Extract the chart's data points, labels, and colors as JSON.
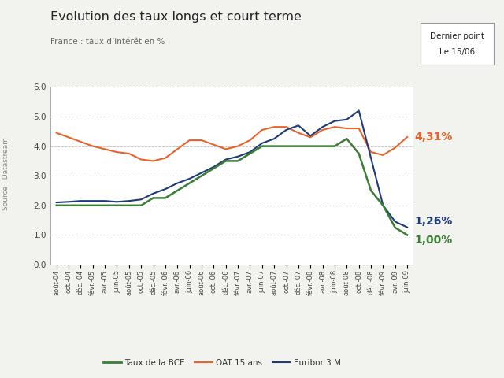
{
  "title": "Evolution des taux longs et court terme",
  "subtitle": "France : taux d’intérêt en %",
  "source": "Source : Datastream",
  "ylim": [
    0.0,
    6.0
  ],
  "yticks": [
    0.0,
    1.0,
    2.0,
    3.0,
    4.0,
    5.0,
    6.0
  ],
  "bg_color": "#f2f2ee",
  "plot_bg_color": "#ffffff",
  "x_labels": [
    "août-04",
    "oct.-04",
    "déc.-04",
    "févr.-05",
    "avr.-05",
    "juin-05",
    "août-05",
    "oct.-05",
    "déc.-05",
    "févr.-06",
    "avr.-06",
    "juin-06",
    "août-06",
    "oct.-06",
    "déc.-06",
    "févr.-07",
    "avr.-07",
    "juin-07",
    "août-07",
    "oct.-07",
    "déc.-07",
    "févr.-08",
    "avr.-08",
    "juin-08",
    "août-08",
    "oct.-08",
    "déc.-08",
    "févr.-09",
    "avr.-09",
    "juin-09"
  ],
  "bce": [
    2.0,
    2.0,
    2.0,
    2.0,
    2.0,
    2.0,
    2.0,
    2.0,
    2.25,
    2.25,
    2.5,
    2.75,
    3.0,
    3.25,
    3.5,
    3.5,
    3.75,
    4.0,
    4.0,
    4.0,
    4.0,
    4.0,
    4.0,
    4.0,
    4.25,
    3.75,
    2.5,
    2.0,
    1.25,
    1.0
  ],
  "oat": [
    4.45,
    4.3,
    4.15,
    4.0,
    3.9,
    3.8,
    3.75,
    3.55,
    3.5,
    3.6,
    3.9,
    4.2,
    4.2,
    4.05,
    3.9,
    4.0,
    4.2,
    4.55,
    4.65,
    4.65,
    4.45,
    4.3,
    4.55,
    4.65,
    4.6,
    4.6,
    3.8,
    3.7,
    3.95,
    4.31
  ],
  "euribor": [
    2.1,
    2.12,
    2.15,
    2.15,
    2.15,
    2.12,
    2.15,
    2.2,
    2.4,
    2.55,
    2.75,
    2.9,
    3.1,
    3.3,
    3.55,
    3.65,
    3.8,
    4.1,
    4.25,
    4.55,
    4.7,
    4.35,
    4.65,
    4.85,
    4.9,
    5.2,
    3.6,
    2.0,
    1.45,
    1.26
  ],
  "bce_color": "#3a7d34",
  "oat_color": "#e8622a",
  "euribor_color": "#1e3a7a",
  "final_bce": "1,00%",
  "final_oat": "4,31%",
  "final_euribor": "1,26%",
  "legend_bce": "Taux de la BCE",
  "legend_oat": "OAT 15 ans",
  "legend_euribor": "Euribor 3 M"
}
